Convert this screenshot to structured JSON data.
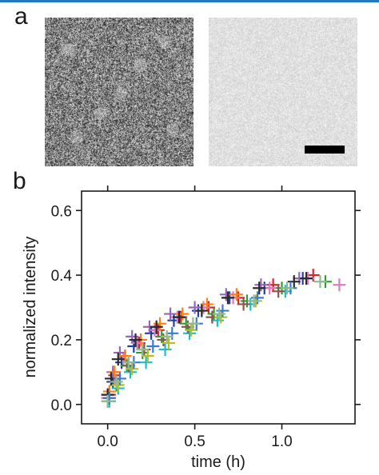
{
  "figure": {
    "panel_a_label": "a",
    "panel_b_label": "b",
    "panel_a": {
      "left_image": "noisy speckled grayscale micrograph",
      "right_image": "faint uniform micrograph with scale bar",
      "scale_bar_color": "#000000"
    }
  },
  "chart_data": {
    "type": "scatter",
    "xlabel": "time (h)",
    "ylabel": "normalized intensity",
    "xlim": [
      -0.15,
      1.42
    ],
    "ylim": [
      -0.06,
      0.66
    ],
    "xticks": [
      0.0,
      0.5,
      1.0
    ],
    "xtick_labels": [
      "0.0",
      "0.5",
      "1.0"
    ],
    "yticks": [
      0.0,
      0.2,
      0.4,
      0.6
    ],
    "ytick_labels": [
      "0.0",
      "0.2",
      "0.4",
      "0.6"
    ],
    "marker": "plus",
    "grid": false,
    "legend": "none",
    "series": [
      {
        "color": "#1f3f9c",
        "x": [
          0.0,
          0.03,
          0.08,
          0.15,
          0.25,
          0.38,
          0.52,
          0.7,
          0.9,
          1.12
        ],
        "y": [
          0.02,
          0.07,
          0.13,
          0.18,
          0.22,
          0.26,
          0.29,
          0.33,
          0.36,
          0.39
        ]
      },
      {
        "color": "#d62728",
        "x": [
          0.01,
          0.04,
          0.1,
          0.18,
          0.29,
          0.42,
          0.58,
          0.75,
          0.95,
          1.18
        ],
        "y": [
          0.03,
          0.09,
          0.15,
          0.19,
          0.23,
          0.27,
          0.3,
          0.33,
          0.37,
          0.4
        ]
      },
      {
        "color": "#2ca02c",
        "x": [
          0.0,
          0.05,
          0.11,
          0.2,
          0.31,
          0.45,
          0.61,
          0.8,
          1.0,
          1.25
        ],
        "y": [
          0.01,
          0.06,
          0.12,
          0.16,
          0.21,
          0.25,
          0.28,
          0.32,
          0.36,
          0.38
        ]
      },
      {
        "color": "#17becf",
        "x": [
          0.01,
          0.06,
          0.13,
          0.22,
          0.33,
          0.47,
          0.63,
          0.82,
          1.02
        ],
        "y": [
          0.01,
          0.05,
          0.1,
          0.13,
          0.17,
          0.22,
          0.26,
          0.31,
          0.35
        ]
      },
      {
        "color": "#e377c2",
        "x": [
          0.0,
          0.04,
          0.09,
          0.17,
          0.27,
          0.4,
          0.55,
          0.72,
          0.93,
          1.15,
          1.33
        ],
        "y": [
          0.02,
          0.08,
          0.14,
          0.19,
          0.23,
          0.27,
          0.3,
          0.33,
          0.36,
          0.39,
          0.37
        ]
      },
      {
        "color": "#9467bd",
        "x": [
          0.0,
          0.03,
          0.07,
          0.14,
          0.24,
          0.36,
          0.5,
          0.68,
          0.88,
          1.1
        ],
        "y": [
          0.03,
          0.1,
          0.16,
          0.21,
          0.24,
          0.28,
          0.3,
          0.34,
          0.37,
          0.39
        ]
      },
      {
        "color": "#8c564b",
        "x": [
          0.01,
          0.05,
          0.12,
          0.21,
          0.32,
          0.46,
          0.6,
          0.78,
          0.98
        ],
        "y": [
          0.02,
          0.07,
          0.12,
          0.17,
          0.2,
          0.24,
          0.27,
          0.31,
          0.35
        ]
      },
      {
        "color": "#bcbd22",
        "x": [
          0.0,
          0.06,
          0.14,
          0.23,
          0.35,
          0.48,
          0.65,
          0.85
        ],
        "y": [
          0.01,
          0.06,
          0.11,
          0.15,
          0.19,
          0.23,
          0.27,
          0.32
        ]
      },
      {
        "color": "#ff7f0e",
        "x": [
          0.01,
          0.04,
          0.1,
          0.19,
          0.3,
          0.43,
          0.57,
          0.74
        ],
        "y": [
          0.04,
          0.1,
          0.15,
          0.2,
          0.25,
          0.28,
          0.31,
          0.34
        ]
      },
      {
        "color": "#2b2b2b",
        "x": [
          0.0,
          0.02,
          0.06,
          0.16,
          0.28,
          0.41,
          0.54,
          0.69,
          0.87,
          1.07,
          1.14
        ],
        "y": [
          0.03,
          0.08,
          0.14,
          0.2,
          0.24,
          0.27,
          0.29,
          0.33,
          0.36,
          0.38,
          0.39
        ]
      },
      {
        "color": "#3a7bd5",
        "x": [
          0.01,
          0.07,
          0.15,
          0.26,
          0.37,
          0.51,
          0.66,
          0.86,
          1.05
        ],
        "y": [
          0.02,
          0.08,
          0.13,
          0.18,
          0.22,
          0.25,
          0.29,
          0.33,
          0.36
        ]
      },
      {
        "color": "#8fbc8f",
        "x": [
          0.0,
          0.05,
          0.12,
          0.2,
          0.34,
          0.49,
          0.64,
          0.84,
          1.03,
          1.22
        ],
        "y": [
          0.01,
          0.07,
          0.13,
          0.17,
          0.21,
          0.25,
          0.28,
          0.32,
          0.36,
          0.38
        ]
      }
    ]
  }
}
